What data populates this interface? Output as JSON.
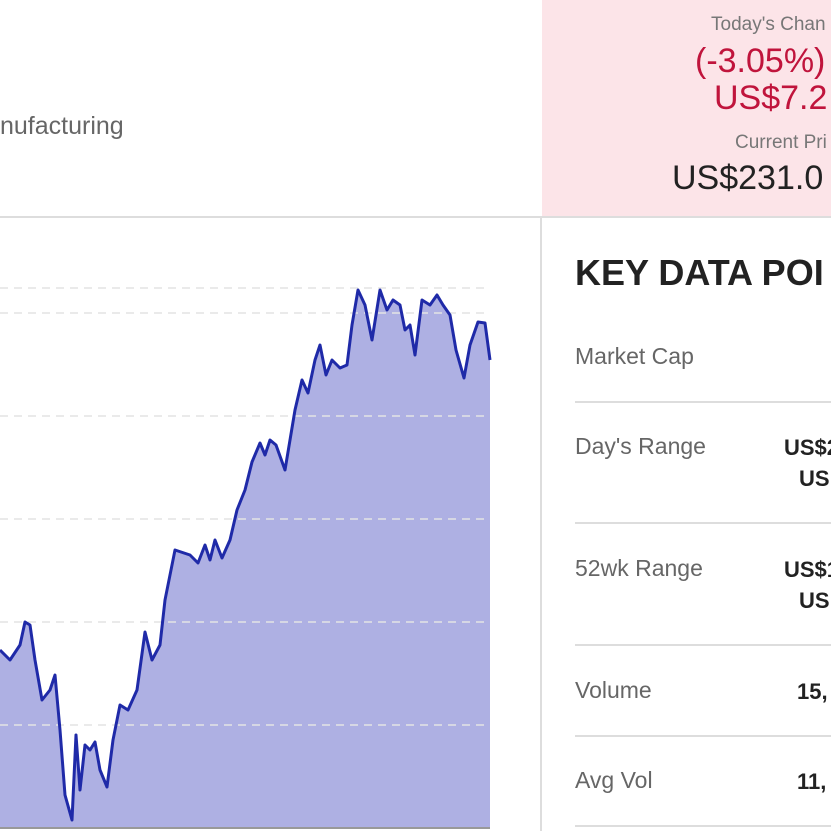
{
  "header": {
    "industry": "nufacturing"
  },
  "quote": {
    "change_label": "Today's Chan",
    "change_pct": "(-3.05%)",
    "change_abs": "US$7.2",
    "price_label": "Current Pri",
    "price": "US$231.0"
  },
  "key_data": {
    "title": "KEY DATA POI",
    "rows": [
      {
        "label": "Market Cap",
        "values": []
      },
      {
        "label": "Day's Range",
        "values": [
          "US$2",
          "US"
        ]
      },
      {
        "label": "52wk Range",
        "values": [
          "US$1",
          "US"
        ]
      },
      {
        "label": "Volume",
        "values": [
          "15,"
        ]
      },
      {
        "label": "Avg Vol",
        "values": [
          "11,"
        ]
      }
    ]
  },
  "chart_data": {
    "type": "area",
    "color": "#1f2aa8",
    "fill": "#aeb0e3",
    "grid": true,
    "xlim": [
      0,
      490
    ],
    "ylim": [
      0,
      618
    ],
    "yticks": [
      103,
      206,
      309,
      412,
      515,
      540
    ],
    "x": [
      0,
      10,
      20,
      25,
      30,
      35,
      42,
      50,
      55,
      60,
      65,
      72,
      76,
      80,
      85,
      90,
      95,
      100,
      107,
      113,
      120,
      128,
      137,
      145,
      152,
      160,
      165,
      175,
      190,
      198,
      205,
      210,
      215,
      222,
      230,
      237,
      245,
      252,
      260,
      265,
      270,
      276,
      285,
      290,
      295,
      302,
      308,
      315,
      320,
      326,
      332,
      340,
      347,
      352,
      358,
      365,
      372,
      380,
      387,
      393,
      400,
      405,
      410,
      415,
      422,
      430,
      437,
      443,
      450,
      456,
      464,
      470,
      478,
      485,
      490
    ],
    "values": [
      178,
      168,
      183,
      206,
      203,
      168,
      128,
      138,
      153,
      98,
      33,
      8,
      93,
      38,
      83,
      78,
      86,
      58,
      41,
      88,
      123,
      118,
      138,
      196,
      168,
      183,
      228,
      278,
      273,
      265,
      283,
      268,
      288,
      270,
      288,
      318,
      338,
      366,
      385,
      373,
      388,
      383,
      358,
      388,
      418,
      448,
      435,
      468,
      483,
      453,
      468,
      460,
      463,
      503,
      538,
      523,
      488,
      538,
      518,
      528,
      523,
      498,
      503,
      473,
      528,
      523,
      533,
      523,
      513,
      478,
      450,
      483,
      506,
      505,
      468
    ]
  }
}
